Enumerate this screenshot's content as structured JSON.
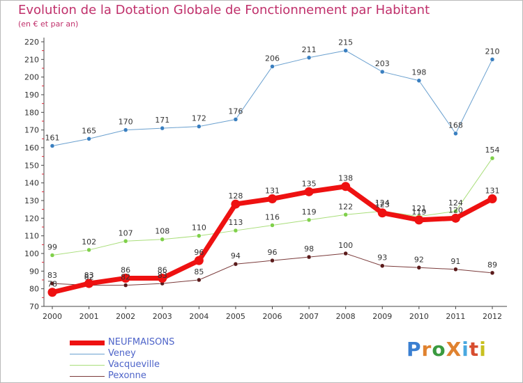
{
  "title": "Evolution de la Dotation Globale de Fonctionnement par Habitant",
  "subtitle": "(en € et par an)",
  "logo": {
    "text": "ProXiti",
    "colors": [
      "#3a7fd1",
      "#e0822f",
      "#3a9a3f",
      "#e0822f",
      "#4aa8e0",
      "#d74d2f",
      "#c8c020"
    ]
  },
  "chart_data": {
    "type": "line",
    "title": "Evolution de la Dotation Globale de Fonctionnement par Habitant",
    "subtitle": "(en € et par an)",
    "x": [
      "2000",
      "2001",
      "2002",
      "2003",
      "2004",
      "2005",
      "2006",
      "2007",
      "2008",
      "2009",
      "2010",
      "2011",
      "2012"
    ],
    "ylim": [
      70,
      220
    ],
    "yticks": [
      70,
      80,
      90,
      100,
      110,
      120,
      130,
      140,
      150,
      160,
      170,
      180,
      190,
      200,
      210,
      220
    ],
    "grid": false,
    "legend_position": "bottom-left",
    "series": [
      {
        "name": "Veney",
        "color": "#6aa0cf",
        "marker": "#3a7fc0",
        "width": 1,
        "values": [
          161,
          165,
          170,
          171,
          172,
          176,
          206,
          211,
          215,
          203,
          198,
          168,
          210
        ]
      },
      {
        "name": "Vacqueville",
        "color": "#a9de7a",
        "marker": "#7fd04a",
        "width": 1,
        "values": [
          99,
          102,
          107,
          108,
          110,
          113,
          116,
          119,
          122,
          124,
          121,
          124,
          154
        ]
      },
      {
        "name": "Pexonne",
        "color": "#7a3a3a",
        "marker": "#5a1a1a",
        "width": 1,
        "values": [
          83,
          82,
          82,
          83,
          85,
          94,
          96,
          98,
          100,
          93,
          92,
          91,
          89
        ]
      },
      {
        "name": "NEUFMAISONS",
        "color": "#ee1111",
        "marker": "#ee1111",
        "width": 7,
        "values": [
          78,
          83,
          86,
          86,
          96,
          128,
          131,
          135,
          138,
          123,
          119,
          120,
          131
        ]
      }
    ],
    "legend_order": [
      "NEUFMAISONS",
      "Veney",
      "Vacqueville",
      "Pexonne"
    ]
  }
}
